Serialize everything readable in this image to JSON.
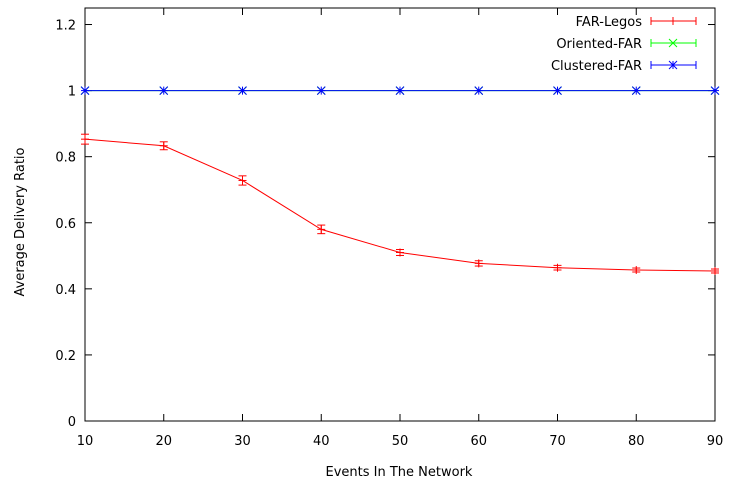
{
  "chart_data": {
    "type": "line",
    "title": "",
    "xlabel": "Events In The Network",
    "ylabel": "Average Delivery Ratio",
    "xlim": [
      10,
      90
    ],
    "ylim": [
      0,
      1.25
    ],
    "x_ticks": [
      10,
      20,
      30,
      40,
      50,
      60,
      70,
      80,
      90
    ],
    "x_tick_labels": [
      "10",
      "20",
      "30",
      "40",
      "50",
      "60",
      "70",
      "80",
      "90"
    ],
    "y_ticks": [
      0,
      0.2,
      0.4,
      0.6,
      0.8,
      1,
      1.2
    ],
    "y_tick_labels": [
      "0",
      "0.2",
      "0.4",
      "0.6",
      "0.8",
      "1",
      "1.2"
    ],
    "grid": false,
    "legend_position": "top-right",
    "x": [
      10,
      20,
      30,
      40,
      50,
      60,
      70,
      80,
      90
    ],
    "series": [
      {
        "name": "FAR-Legos",
        "color": "#ff0000",
        "marker": "plus",
        "values": [
          0.853,
          0.833,
          0.728,
          0.58,
          0.51,
          0.477,
          0.464,
          0.457,
          0.454
        ],
        "errors": [
          0.015,
          0.012,
          0.014,
          0.013,
          0.009,
          0.008,
          0.007,
          0.006,
          0.006
        ]
      },
      {
        "name": "Oriented-FAR",
        "color": "#00ff00",
        "marker": "x",
        "values": [
          1,
          1,
          1,
          1,
          1,
          1,
          1,
          1,
          1
        ],
        "errors": [
          0,
          0,
          0,
          0,
          0,
          0,
          0,
          0,
          0
        ]
      },
      {
        "name": "Clustered-FAR",
        "color": "#0000ff",
        "marker": "star",
        "values": [
          1,
          1,
          1,
          1,
          1,
          1,
          1,
          1,
          1
        ],
        "errors": [
          0,
          0,
          0,
          0,
          0,
          0,
          0,
          0,
          0
        ]
      }
    ]
  }
}
